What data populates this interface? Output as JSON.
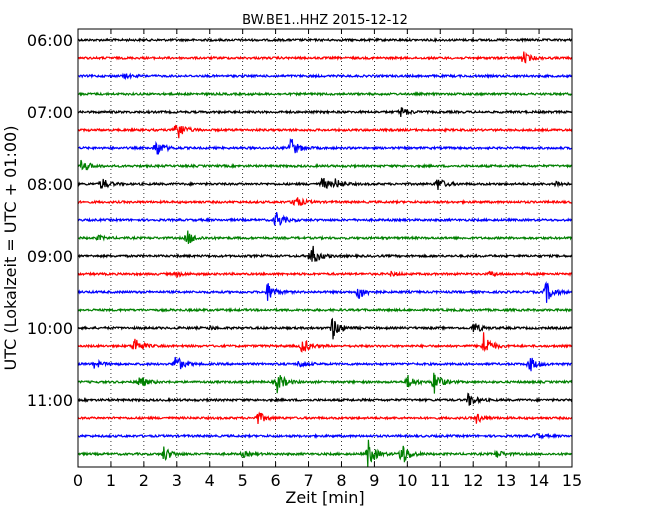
{
  "chart_data": {
    "type": "line",
    "title": "BW.BE1..HHZ 2015-12-12",
    "xlabel": "Zeit  [min]",
    "ylabel": "UTC (Lokalzeit = UTC + 01:00)",
    "xlim": [
      0,
      15
    ],
    "x_ticks": [
      "0",
      "1",
      "2",
      "3",
      "4",
      "5",
      "6",
      "7",
      "8",
      "9",
      "10",
      "11",
      "12",
      "13",
      "14",
      "15"
    ],
    "y_ticks": [
      "06:00",
      "07:00",
      "08:00",
      "09:00",
      "10:00",
      "11:00"
    ],
    "grid": true,
    "grid_style": "dotted-vertical",
    "trace_colors": [
      "#000000",
      "#ff0000",
      "#0000ff",
      "#008000"
    ],
    "rows": [
      {
        "time": "06:00",
        "events": []
      },
      {
        "time": "06:15",
        "events": [
          {
            "x": 13.5,
            "amp": 0.45
          }
        ]
      },
      {
        "time": "06:30",
        "events": [
          {
            "x": 1.4,
            "amp": 0.15
          }
        ]
      },
      {
        "time": "06:45",
        "events": []
      },
      {
        "time": "07:00",
        "events": [
          {
            "x": 9.8,
            "amp": 0.35
          }
        ]
      },
      {
        "time": "07:15",
        "events": [
          {
            "x": 2.95,
            "amp": 1.0
          }
        ]
      },
      {
        "time": "07:30",
        "events": [
          {
            "x": 2.35,
            "amp": 0.7
          },
          {
            "x": 6.45,
            "amp": 0.75
          }
        ]
      },
      {
        "time": "07:45",
        "events": [
          {
            "x": 0.1,
            "amp": 0.5
          }
        ]
      },
      {
        "time": "08:00",
        "events": [
          {
            "x": 0.7,
            "amp": 0.45
          },
          {
            "x": 7.4,
            "amp": 0.5
          },
          {
            "x": 7.8,
            "amp": 0.3
          },
          {
            "x": 10.9,
            "amp": 0.5
          },
          {
            "x": 14.5,
            "amp": 0.2
          }
        ]
      },
      {
        "time": "08:15",
        "events": [
          {
            "x": 6.55,
            "amp": 0.55
          }
        ]
      },
      {
        "time": "08:30",
        "events": [
          {
            "x": 6.0,
            "amp": 0.7
          }
        ]
      },
      {
        "time": "08:45",
        "events": [
          {
            "x": 3.3,
            "amp": 0.55
          },
          {
            "x": 0.6,
            "amp": 0.15
          }
        ]
      },
      {
        "time": "09:00",
        "events": [
          {
            "x": 7.05,
            "amp": 1.0
          }
        ]
      },
      {
        "time": "09:15",
        "events": [
          {
            "x": 3.0,
            "amp": 0.15
          },
          {
            "x": 9.5,
            "amp": 0.15
          },
          {
            "x": 12.5,
            "amp": 0.15
          }
        ]
      },
      {
        "time": "09:30",
        "events": [
          {
            "x": 5.75,
            "amp": 0.7
          },
          {
            "x": 8.5,
            "amp": 0.55
          },
          {
            "x": 14.2,
            "amp": 0.8
          }
        ]
      },
      {
        "time": "09:45",
        "events": []
      },
      {
        "time": "10:00",
        "events": [
          {
            "x": 7.7,
            "amp": 0.9
          },
          {
            "x": 12.0,
            "amp": 0.4
          },
          {
            "x": 4.0,
            "amp": 0.1
          }
        ]
      },
      {
        "time": "10:15",
        "events": [
          {
            "x": 1.7,
            "amp": 0.7
          },
          {
            "x": 6.8,
            "amp": 0.6
          },
          {
            "x": 12.3,
            "amp": 1.0
          }
        ]
      },
      {
        "time": "10:30",
        "events": [
          {
            "x": 0.5,
            "amp": 0.3
          },
          {
            "x": 2.95,
            "amp": 0.7
          },
          {
            "x": 13.7,
            "amp": 0.6
          },
          {
            "x": 6.7,
            "amp": 0.25
          }
        ]
      },
      {
        "time": "10:45",
        "events": [
          {
            "x": 1.85,
            "amp": 0.5
          },
          {
            "x": 6.05,
            "amp": 0.75
          },
          {
            "x": 10.0,
            "amp": 0.5
          },
          {
            "x": 10.8,
            "amp": 0.85
          }
        ]
      },
      {
        "time": "11:00",
        "events": [
          {
            "x": 11.85,
            "amp": 0.5
          }
        ]
      },
      {
        "time": "11:15",
        "events": [
          {
            "x": 5.45,
            "amp": 0.45
          },
          {
            "x": 12.1,
            "amp": 0.35
          }
        ]
      },
      {
        "time": "11:30",
        "events": [
          {
            "x": 13.9,
            "amp": 0.15
          }
        ]
      },
      {
        "time": "11:45",
        "events": [
          {
            "x": 2.6,
            "amp": 0.55
          },
          {
            "x": 8.8,
            "amp": 1.0
          },
          {
            "x": 9.8,
            "amp": 1.0
          },
          {
            "x": 12.7,
            "amp": 0.3
          },
          {
            "x": 5.0,
            "amp": 0.2
          }
        ]
      }
    ]
  }
}
